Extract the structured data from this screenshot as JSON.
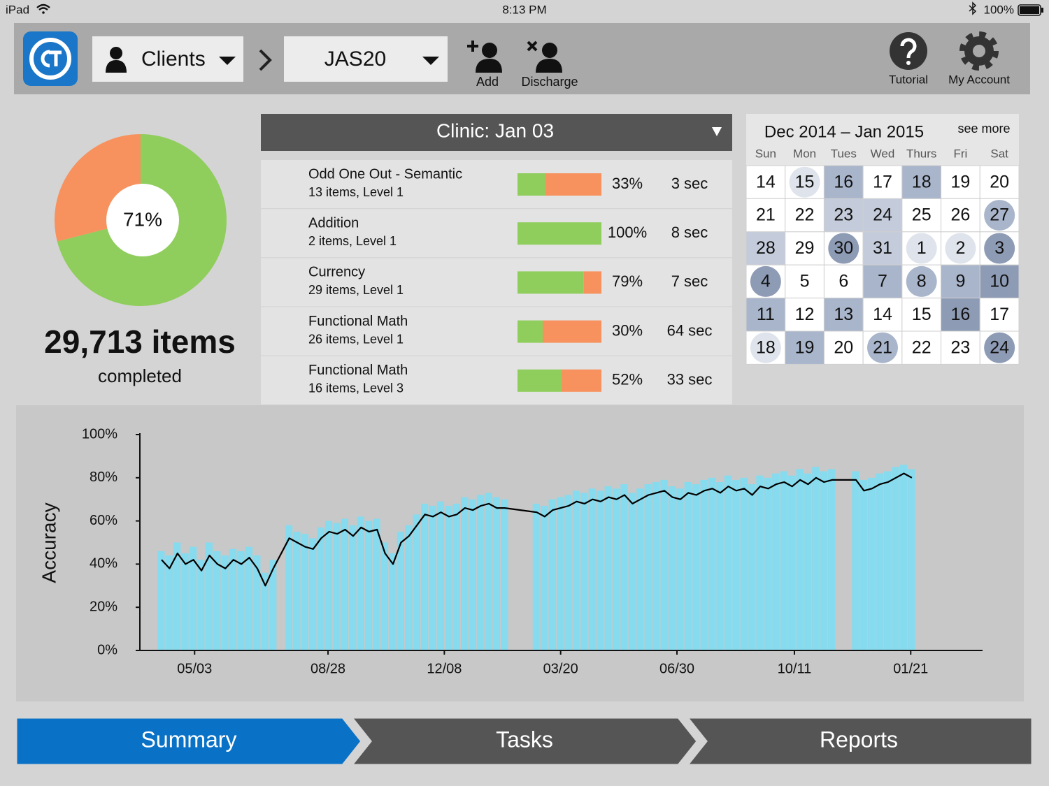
{
  "status_bar": {
    "device": "iPad",
    "time": "8:13 PM",
    "battery": "100%"
  },
  "toolbar": {
    "client_menu": "Clients",
    "client": "JAS20",
    "add": "Add",
    "discharge": "Discharge",
    "tutorial": "Tutorial",
    "account": "My Account"
  },
  "completion": {
    "type": "pie",
    "values": [
      71,
      29
    ],
    "colors": [
      "#8fcd5c",
      "#f7925e"
    ],
    "center_label": "71%",
    "items": "29,713 items",
    "caption": "completed"
  },
  "session": {
    "title": "Clinic: Jan 03",
    "colors": [
      "#8fcd5c",
      "#f7925e"
    ],
    "rows": [
      {
        "task": "Odd One Out - Semantic",
        "detail": "13 items, Level 1",
        "accuracy": 33,
        "accuracy_label": "33%",
        "time": "3 sec"
      },
      {
        "task": "Addition",
        "detail": "2 items, Level 1",
        "accuracy": 100,
        "accuracy_label": "100%",
        "time": "8 sec"
      },
      {
        "task": "Currency",
        "detail": "29 items, Level 1",
        "accuracy": 79,
        "accuracy_label": "79%",
        "time": "7 sec"
      },
      {
        "task": "Functional Math",
        "detail": "26 items, Level 1",
        "accuracy": 30,
        "accuracy_label": "30%",
        "time": "64 sec"
      },
      {
        "task": "Functional Math",
        "detail": "16 items, Level 3",
        "accuracy": 52,
        "accuracy_label": "52%",
        "time": "33 sec"
      }
    ]
  },
  "calendar": {
    "title": "Dec 2014 – Jan 2015",
    "more": "see more",
    "weekdays": [
      "Sun",
      "Mon",
      "Tues",
      "Wed",
      "Thurs",
      "Fri",
      "Sat"
    ],
    "weeks": [
      {
        "days": [
          14,
          15,
          16,
          17,
          18,
          19,
          20
        ],
        "colors": [
          "#ffffff",
          "#dfe4ec",
          "#a9b5cb",
          "#ffffff",
          "#a9b5cb",
          "#ffffff",
          "#ffffff"
        ],
        "shapes": [
          "square",
          "circle",
          "square",
          "square",
          "square",
          "square",
          "square"
        ]
      },
      {
        "days": [
          21,
          22,
          23,
          24,
          25,
          26,
          27
        ],
        "colors": [
          "#ffffff",
          "#ffffff",
          "#c4ccdb",
          "#c4ccdb",
          "#ffffff",
          "#ffffff",
          "#a9b5cb"
        ],
        "shapes": [
          "square",
          "square",
          "square",
          "square",
          "square",
          "square",
          "circle"
        ]
      },
      {
        "days": [
          28,
          29,
          30,
          31,
          1,
          2,
          3
        ],
        "colors": [
          "#c4ccdb",
          "#ffffff",
          "#8e9bb5",
          "#c4ccdb",
          "#dfe4ec",
          "#dfe4ec",
          "#8e9bb5"
        ],
        "shapes": [
          "square",
          "square",
          "circle",
          "square",
          "circle",
          "circle",
          "circle"
        ]
      },
      {
        "days": [
          4,
          5,
          6,
          7,
          8,
          9,
          10
        ],
        "colors": [
          "#8e9bb5",
          "#ffffff",
          "#ffffff",
          "#a9b5cb",
          "#a9b5cb",
          "#a9b5cb",
          "#8e9bb5"
        ],
        "shapes": [
          "circle",
          "square",
          "square",
          "square",
          "circle",
          "square",
          "square"
        ]
      },
      {
        "days": [
          11,
          12,
          13,
          14,
          15,
          16,
          17
        ],
        "colors": [
          "#a9b5cb",
          "#ffffff",
          "#a9b5cb",
          "#ffffff",
          "#ffffff",
          "#8e9bb5",
          "#ffffff"
        ],
        "shapes": [
          "square",
          "square",
          "square",
          "square",
          "square",
          "square",
          "square"
        ]
      },
      {
        "days": [
          18,
          19,
          20,
          21,
          22,
          23,
          24
        ],
        "colors": [
          "#dfe4ec",
          "#a9b5cb",
          "#ffffff",
          "#a9b5cb",
          "#ffffff",
          "#ffffff",
          "#8e9bb5"
        ],
        "shapes": [
          "circle",
          "square",
          "square",
          "circle",
          "square",
          "square",
          "circle"
        ]
      }
    ]
  },
  "chart_data": {
    "type": "line",
    "y_label": "Accuracy",
    "x": [
      "04/04",
      "04/11",
      "04/18",
      "04/25",
      "05/02",
      "05/09",
      "05/16",
      "05/23",
      "05/30",
      "06/06",
      "06/13",
      "06/20",
      "06/27",
      "07/04",
      "07/11",
      "07/25",
      "08/01",
      "08/08",
      "08/15",
      "08/22",
      "08/29",
      "09/05",
      "09/12",
      "09/19",
      "09/26",
      "10/03",
      "10/10",
      "10/17",
      "10/24",
      "10/31",
      "11/07",
      "11/14",
      "11/21",
      "11/28",
      "12/05",
      "12/12",
      "12/19",
      "12/26",
      "01/02",
      "01/09",
      "01/16",
      "01/23",
      "01/30",
      "02/27",
      "03/06",
      "03/13",
      "03/20",
      "03/27",
      "04/03",
      "04/10",
      "04/17",
      "04/24",
      "05/01",
      "05/08",
      "05/15",
      "05/22",
      "05/29",
      "06/05",
      "06/12",
      "06/19",
      "06/26",
      "07/03",
      "07/10",
      "07/17",
      "07/24",
      "07/31",
      "08/07",
      "08/14",
      "08/21",
      "08/28",
      "09/04",
      "09/11",
      "09/18",
      "09/25",
      "10/02",
      "10/09",
      "10/16",
      "10/23",
      "10/30",
      "11/06",
      "11/13",
      "12/04",
      "12/11",
      "12/18",
      "12/25",
      "01/01",
      "01/08",
      "01/15",
      "01/22"
    ],
    "series": [
      {
        "style": "bar",
        "color": "#86dbee",
        "values": [
          46,
          44,
          50,
          45,
          48,
          42,
          50,
          46,
          44,
          47,
          46,
          48,
          44,
          36,
          42,
          58,
          55,
          54,
          52,
          57,
          60,
          59,
          61,
          58,
          62,
          60,
          61,
          50,
          45,
          55,
          58,
          63,
          68,
          67,
          69,
          67,
          68,
          71,
          70,
          72,
          73,
          71,
          70,
          68,
          67,
          70,
          71,
          72,
          74,
          73,
          75,
          74,
          76,
          75,
          77,
          73,
          75,
          77,
          78,
          79,
          76,
          75,
          78,
          77,
          79,
          80,
          78,
          81,
          79,
          80,
          77,
          81,
          80,
          82,
          83,
          81,
          84,
          82,
          85,
          83,
          84,
          83,
          79,
          80,
          82,
          83,
          85,
          86,
          84
        ]
      },
      {
        "style": "line",
        "color": "#000000",
        "values": [
          42,
          38,
          45,
          40,
          42,
          37,
          44,
          40,
          38,
          42,
          40,
          43,
          38,
          30,
          38,
          52,
          50,
          48,
          47,
          52,
          55,
          54,
          56,
          53,
          57,
          55,
          56,
          45,
          40,
          50,
          53,
          58,
          63,
          62,
          64,
          62,
          63,
          66,
          65,
          67,
          68,
          66,
          66,
          64,
          62,
          65,
          66,
          67,
          69,
          68,
          70,
          69,
          71,
          70,
          72,
          68,
          70,
          72,
          73,
          74,
          71,
          70,
          73,
          72,
          74,
          75,
          73,
          76,
          74,
          75,
          72,
          76,
          75,
          77,
          78,
          76,
          79,
          77,
          80,
          78,
          79,
          79,
          74,
          75,
          77,
          78,
          80,
          82,
          80
        ]
      }
    ],
    "xlim": [
      "03/16",
      "03/25"
    ],
    "xticks": [
      "05/03",
      "08/28",
      "12/08",
      "03/20",
      "06/30",
      "10/11",
      "01/21"
    ],
    "ylim": [
      0,
      100
    ],
    "yticks": [
      {
        "value": 0,
        "label": "0%"
      },
      {
        "value": 20,
        "label": "20%"
      },
      {
        "value": 40,
        "label": "40%"
      },
      {
        "value": 60,
        "label": "60%"
      },
      {
        "value": 80,
        "label": "80%"
      },
      {
        "value": 100,
        "label": "100%"
      }
    ]
  },
  "tabs": [
    "Summary",
    "Tasks",
    "Reports"
  ]
}
